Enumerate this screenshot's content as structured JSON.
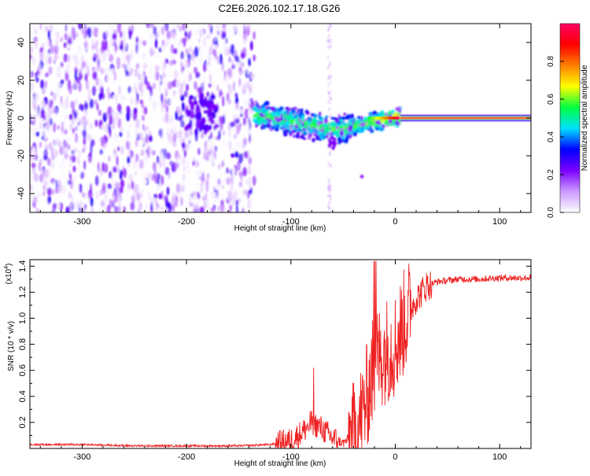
{
  "title": "C2E6.2026.102.17.18.G26",
  "chart_data": [
    {
      "type": "heatmap",
      "name": "spectrogram",
      "xlabel": "Height of straight line (km)",
      "ylabel": "Frequency (Hz)",
      "xlim": [
        -350,
        130
      ],
      "ylim": [
        -50,
        50
      ],
      "xticks": [
        "-300",
        "-200",
        "-100",
        "0",
        "100"
      ],
      "xtick_values": [
        -300,
        -200,
        -100,
        0,
        100
      ],
      "yticks": [
        "-40",
        "-20",
        "0",
        "20",
        "40"
      ],
      "ytick_values": [
        -40,
        -20,
        0,
        20,
        40
      ],
      "colorbar": {
        "label": "Normalized spectral amplitude",
        "range": [
          0,
          1
        ],
        "ticks": [
          "0.0",
          "0.2",
          "0.4",
          "0.6",
          "0.8"
        ],
        "tick_values": [
          0.0,
          0.2,
          0.4,
          0.6,
          0.8
        ],
        "stops": [
          "#ffffff",
          "#cc99ff",
          "#7a00ff",
          "#0000ff",
          "#00e0ff",
          "#00ff40",
          "#ffff00",
          "#ff8000",
          "#ff0000",
          "#ff0066"
        ]
      },
      "regions": [
        {
          "x": [
            -350,
            -135
          ],
          "freq": [
            -50,
            50
          ],
          "amplitude": [
            0.0,
            0.15
          ],
          "pattern": "broadband noise"
        },
        {
          "x": [
            -135,
            5
          ],
          "freq_center": [
            2,
            -5,
            0
          ],
          "amplitude": [
            0.2,
            0.6
          ],
          "pattern": "diffuse carrier"
        },
        {
          "x": [
            5,
            130
          ],
          "freq_center": [
            0,
            0
          ],
          "amplitude": [
            0.9,
            1.0
          ],
          "pattern": "steady tone"
        }
      ]
    },
    {
      "type": "line",
      "name": "snr",
      "xlabel": "Height of straight line (km)",
      "ylabel": "SNR (10 * v/v)",
      "scale_label": "(x10",
      "scale_exp": "4",
      "scale_close": ")",
      "xlim": [
        -350,
        130
      ],
      "ylim": [
        0,
        1.45
      ],
      "xticks": [
        "-300",
        "-200",
        "-100",
        "0",
        "100"
      ],
      "xtick_values": [
        -300,
        -200,
        -100,
        0,
        100
      ],
      "yticks": [
        "0.2",
        "0.4",
        "0.6",
        "0.8",
        "1.0",
        "1.2",
        "1.4"
      ],
      "ytick_values": [
        0.2,
        0.4,
        0.6,
        0.8,
        1.0,
        1.2,
        1.4
      ],
      "color": "#ee2222",
      "series": [
        {
          "name": "SNR",
          "x": [
            -350,
            -300,
            -250,
            -200,
            -150,
            -120,
            -100,
            -90,
            -80,
            -70,
            -60,
            -50,
            -40,
            -30,
            -20,
            -10,
            0,
            10,
            20,
            30,
            40,
            60,
            80,
            100,
            130
          ],
          "values": [
            0.03,
            0.03,
            0.02,
            0.02,
            0.02,
            0.03,
            0.06,
            0.12,
            0.2,
            0.15,
            0.08,
            0.04,
            0.1,
            0.3,
            0.65,
            0.75,
            0.8,
            1.0,
            1.15,
            1.25,
            1.28,
            1.3,
            1.3,
            1.31,
            1.31
          ]
        }
      ]
    }
  ]
}
